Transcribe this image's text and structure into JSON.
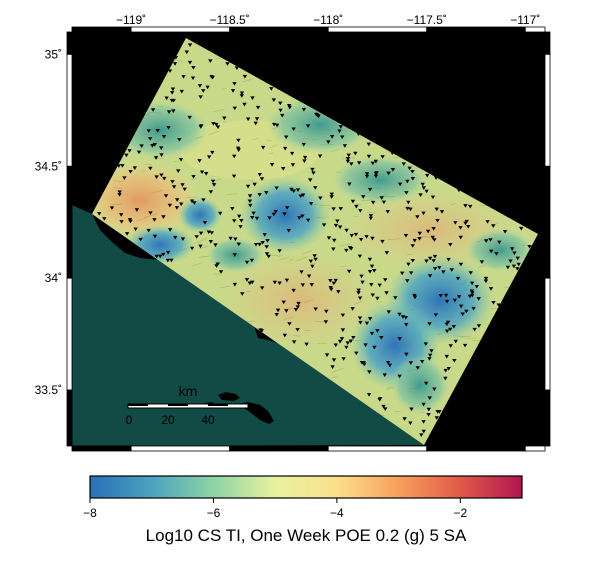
{
  "map": {
    "longitude_labels": [
      {
        "value": -119,
        "label": "−119˚"
      },
      {
        "value": -118.5,
        "label": "−118.5˚"
      },
      {
        "value": -118,
        "label": "−118˚"
      },
      {
        "value": -117.5,
        "label": "−117.5˚"
      },
      {
        "value": -117,
        "label": "−117˚"
      }
    ],
    "latitude_labels": [
      {
        "value": 35,
        "label": "35˚"
      },
      {
        "value": 34.5,
        "label": "34.5˚"
      },
      {
        "value": 34,
        "label": "34˚"
      },
      {
        "value": 33.5,
        "label": "33.5˚"
      }
    ],
    "lon_range": [
      -119.3,
      -116.9
    ],
    "lat_range": [
      33.25,
      35.1
    ],
    "colors": {
      "ocean": "#124a45",
      "outside": "#000000",
      "site_marker": "#000000"
    },
    "scale_bar": {
      "unit": "km",
      "ticks": [
        "0",
        "20",
        "40"
      ]
    }
  },
  "colorbar": {
    "title": "Log10 CS TI, One Week POE 0.2 (g) 5 SA",
    "range": [
      -8,
      -1
    ],
    "ticks": [
      {
        "value": -8,
        "label": "−8"
      },
      {
        "value": -6,
        "label": "−6"
      },
      {
        "value": -4,
        "label": "−4"
      },
      {
        "value": -2,
        "label": "−2"
      }
    ],
    "stops": [
      "#2b6fb8",
      "#4aa3bf",
      "#8fd3a6",
      "#e8f2a0",
      "#fbe08a",
      "#f7a05c",
      "#e05a48",
      "#b1164f"
    ]
  }
}
